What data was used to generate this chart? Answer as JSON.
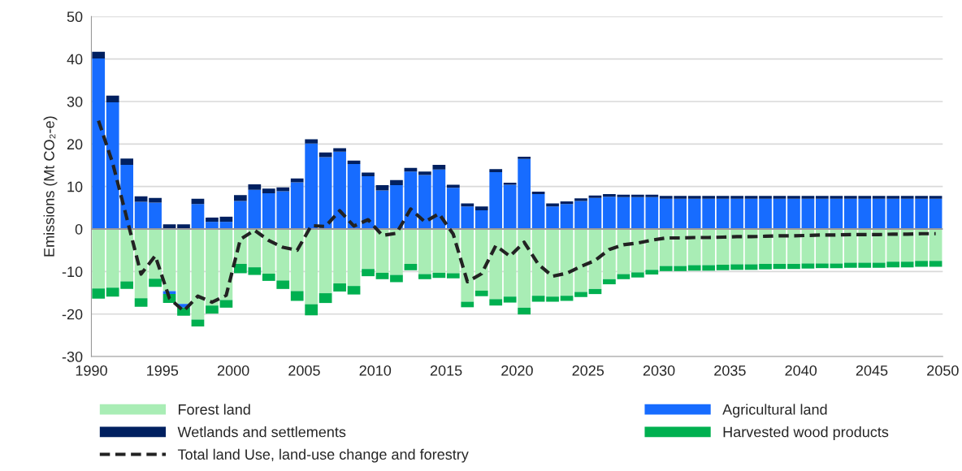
{
  "chart_data": {
    "type": "bar",
    "stacked": true,
    "ylabel": "Emissions (Mt CO₂-e)",
    "x": [
      1990.5,
      1991.5,
      1992.5,
      1993.5,
      1994.5,
      1995.5,
      1996.5,
      1997.5,
      1998.5,
      1999.5,
      2000.5,
      2001.5,
      2002.5,
      2003.5,
      2004.5,
      2005.5,
      2006.5,
      2007.5,
      2008.5,
      2009.5,
      2010.5,
      2011.5,
      2012.5,
      2013.5,
      2014.5,
      2015.5,
      2016.5,
      2017.5,
      2018.5,
      2019.5,
      2020.5,
      2021.5,
      2022.5,
      2023.5,
      2024.5,
      2025.5,
      2026.5,
      2027.5,
      2028.5,
      2029.5,
      2030.5,
      2031.5,
      2032.5,
      2033.5,
      2034.5,
      2035.5,
      2036.5,
      2037.5,
      2038.5,
      2039.5,
      2040.5,
      2041.5,
      2042.5,
      2043.5,
      2044.5,
      2045.5,
      2046.5,
      2047.5,
      2048.5,
      2049.5
    ],
    "xlim": [
      1990,
      2050
    ],
    "xticks": [
      1990,
      1995,
      2000,
      2005,
      2010,
      2015,
      2020,
      2025,
      2030,
      2035,
      2040,
      2045,
      2050
    ],
    "ylim": [
      -30,
      50
    ],
    "yticks": [
      -30,
      -20,
      -10,
      0,
      10,
      20,
      30,
      40,
      50
    ],
    "grid": "y",
    "legend": "bottom",
    "series": [
      {
        "name": "Forest land",
        "color": "#a9edb5",
        "values": [
          -14.0,
          -13.8,
          -12.3,
          -16.3,
          -11.7,
          -14.6,
          -17.6,
          -21.3,
          -18.0,
          -16.7,
          -8.2,
          -9.0,
          -10.5,
          -12.1,
          -14.6,
          -17.7,
          -15.1,
          -12.8,
          -13.4,
          -9.4,
          -10.3,
          -10.8,
          -8.2,
          -10.6,
          -10.3,
          -10.4,
          -17.1,
          -14.5,
          -16.5,
          -15.9,
          -18.5,
          -15.7,
          -15.9,
          -15.7,
          -14.8,
          -14.1,
          -11.8,
          -10.6,
          -10.2,
          -9.6,
          -8.7,
          -8.7,
          -8.5,
          -8.5,
          -8.4,
          -8.3,
          -8.3,
          -8.2,
          -8.2,
          -8.2,
          -8.1,
          -8.1,
          -8.1,
          -7.9,
          -7.9,
          -7.9,
          -7.7,
          -7.7,
          -7.5,
          -7.5
        ]
      },
      {
        "name": "Agricultural land",
        "color": "#176cff",
        "values": [
          40.1,
          29.8,
          15.1,
          6.4,
          6.2,
          -0.7,
          -0.9,
          5.9,
          1.7,
          1.7,
          6.6,
          9.2,
          8.4,
          8.9,
          11.0,
          20.1,
          16.9,
          18.2,
          15.3,
          12.4,
          9.1,
          10.3,
          13.5,
          12.7,
          14.0,
          9.7,
          5.3,
          4.4,
          13.4,
          10.4,
          16.5,
          8.2,
          5.3,
          5.9,
          6.6,
          7.3,
          7.6,
          7.5,
          7.5,
          7.5,
          7.1,
          7.1,
          7.1,
          7.1,
          7.1,
          7.1,
          7.1,
          7.1,
          7.1,
          7.1,
          7.1,
          7.1,
          7.1,
          7.1,
          7.1,
          7.1,
          7.1,
          7.1,
          7.1,
          7.1
        ]
      },
      {
        "name": "Wetlands and settlements",
        "color": "#002060",
        "values": [
          1.6,
          1.6,
          1.5,
          1.3,
          1.1,
          1.1,
          1.1,
          1.2,
          1.0,
          1.2,
          1.4,
          1.3,
          1.1,
          0.9,
          0.9,
          1.0,
          1.1,
          0.8,
          0.8,
          0.9,
          1.2,
          1.2,
          0.9,
          0.8,
          1.1,
          0.7,
          0.7,
          0.9,
          0.7,
          0.5,
          0.5,
          0.6,
          0.7,
          0.6,
          0.6,
          0.6,
          0.6,
          0.6,
          0.6,
          0.6,
          0.7,
          0.7,
          0.7,
          0.7,
          0.7,
          0.7,
          0.7,
          0.7,
          0.7,
          0.7,
          0.7,
          0.7,
          0.7,
          0.7,
          0.7,
          0.7,
          0.7,
          0.7,
          0.7,
          0.7
        ]
      },
      {
        "name": "Harvested wood products",
        "color": "#00b050",
        "values": [
          -2.4,
          -2.1,
          -1.8,
          -2.0,
          -1.9,
          -2.1,
          -1.9,
          -1.6,
          -1.9,
          -1.8,
          -2.2,
          -1.8,
          -1.7,
          -2.0,
          -2.3,
          -2.6,
          -2.3,
          -1.9,
          -2.0,
          -1.7,
          -1.5,
          -1.7,
          -1.5,
          -1.2,
          -1.2,
          -1.2,
          -1.3,
          -1.3,
          -1.5,
          -1.4,
          -1.6,
          -1.4,
          -1.2,
          -1.2,
          -1.2,
          -1.2,
          -1.2,
          -1.2,
          -1.2,
          -1.1,
          -1.2,
          -1.2,
          -1.3,
          -1.3,
          -1.3,
          -1.3,
          -1.3,
          -1.3,
          -1.2,
          -1.2,
          -1.2,
          -1.1,
          -1.1,
          -1.2,
          -1.2,
          -1.2,
          -1.3,
          -1.3,
          -1.4,
          -1.4
        ]
      },
      {
        "name": "Total land Use, land-use change and forestry",
        "type": "line",
        "color": "#222222",
        "line_style": "dashed",
        "values": [
          25.5,
          15.5,
          2.5,
          -10.6,
          -6.3,
          -16.3,
          -19.3,
          -15.8,
          -17.2,
          -15.6,
          -2.4,
          -0.3,
          -2.7,
          -4.3,
          -5.0,
          0.8,
          0.6,
          4.3,
          0.7,
          2.2,
          -1.5,
          -1.0,
          4.7,
          1.7,
          3.6,
          -1.2,
          -12.4,
          -10.5,
          -3.9,
          -6.4,
          -3.1,
          -8.3,
          -11.1,
          -10.4,
          -8.8,
          -7.4,
          -4.8,
          -3.7,
          -3.3,
          -2.6,
          -2.1,
          -2.1,
          -2.0,
          -2.0,
          -1.9,
          -1.8,
          -1.8,
          -1.7,
          -1.6,
          -1.6,
          -1.5,
          -1.4,
          -1.4,
          -1.3,
          -1.3,
          -1.3,
          -1.2,
          -1.2,
          -1.1,
          -1.1
        ]
      }
    ]
  }
}
